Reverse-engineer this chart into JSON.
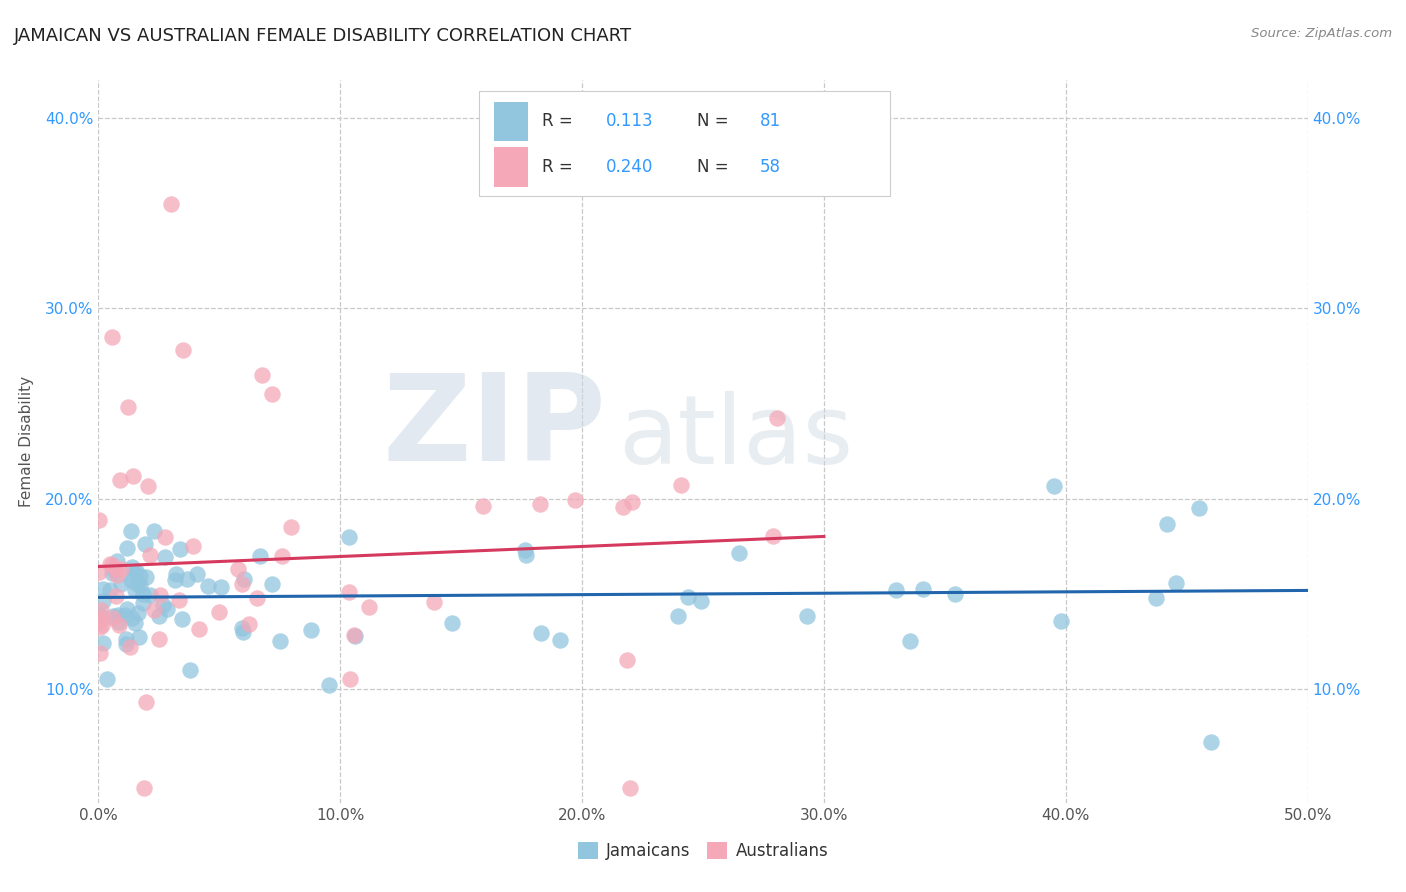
{
  "title": "JAMAICAN VS AUSTRALIAN FEMALE DISABILITY CORRELATION CHART",
  "source": "Source: ZipAtlas.com",
  "ylabel": "Female Disability",
  "xlim": [
    0.0,
    0.5
  ],
  "ylim": [
    0.04,
    0.42
  ],
  "x_ticks": [
    0.0,
    0.1,
    0.2,
    0.3,
    0.4,
    0.5
  ],
  "x_tick_labels": [
    "0.0%",
    "10.0%",
    "20.0%",
    "30.0%",
    "40.0%",
    "50.0%"
  ],
  "y_ticks": [
    0.1,
    0.2,
    0.3,
    0.4
  ],
  "y_tick_labels": [
    "10.0%",
    "20.0%",
    "30.0%",
    "40.0%"
  ],
  "blue_color": "#92c5de",
  "pink_color": "#f4a8b8",
  "line_blue": "#2166ac",
  "line_pink": "#d6395e",
  "watermark_zip": "ZIP",
  "watermark_atlas": "atlas",
  "background_color": "#ffffff",
  "grid_color": "#c8c8c8",
  "title_color": "#222222",
  "axis_label_color": "#555555",
  "tick_color_x": "#555555",
  "tick_color_y": "#3399ff",
  "source_color": "#888888"
}
